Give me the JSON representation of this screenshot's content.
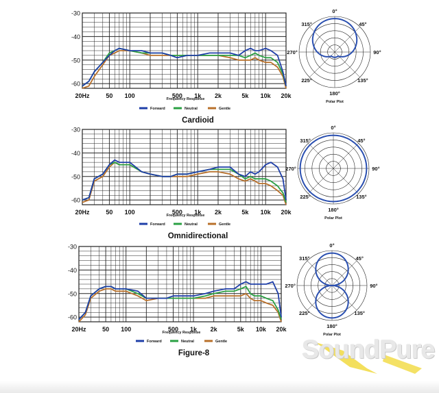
{
  "colors": {
    "forward": "#1f3fa8",
    "neutral": "#2aa043",
    "gentle": "#b8702a",
    "polar": "#2a4fb0",
    "grid": "#222222"
  },
  "legend_labels": [
    "Forward",
    "Neutral",
    "Gentle"
  ],
  "x_tick_labels": [
    "20Hz",
    "50",
    "100",
    "500",
    "1k",
    "2k",
    "5k",
    "10k",
    "20k"
  ],
  "y_tick_labels": [
    "-30",
    "-40",
    "-50",
    "-60"
  ],
  "x_axis_label": "Frequency Response",
  "polar_angle_labels": [
    "0°",
    "45°",
    "90°",
    "135°",
    "180°",
    "225°",
    "270°",
    "315°"
  ],
  "polar_label": "Polar Plot",
  "logo_text": "SoundPure",
  "chart_data": [
    {
      "type": "line",
      "title": "Cardioid",
      "xlabel": "Frequency Response",
      "x_scale": "log",
      "xlim": [
        20,
        20000
      ],
      "ylim": [
        -62,
        -30
      ],
      "grid": true,
      "legend": "bottom",
      "series": [
        {
          "name": "Forward",
          "x": [
            20,
            25,
            30,
            40,
            50,
            60,
            70,
            100,
            150,
            200,
            300,
            400,
            500,
            700,
            1000,
            1500,
            2000,
            3000,
            4000,
            5000,
            6000,
            7000,
            8000,
            10000,
            12000,
            15000,
            18000,
            20000
          ],
          "y": [
            -61,
            -59,
            -55,
            -51,
            -48,
            -46,
            -45,
            -46,
            -46,
            -47,
            -47,
            -48,
            -49,
            -48,
            -48,
            -47,
            -47,
            -47,
            -48,
            -46,
            -45,
            -46,
            -46,
            -45,
            -46,
            -48,
            -55,
            -61
          ]
        },
        {
          "name": "Neutral",
          "x": [
            20,
            25,
            30,
            40,
            50,
            60,
            70,
            100,
            150,
            200,
            300,
            400,
            500,
            700,
            1000,
            1500,
            2000,
            3000,
            4000,
            5000,
            6000,
            7000,
            8000,
            10000,
            12000,
            15000,
            18000,
            20000
          ],
          "y": [
            -61,
            -59,
            -55,
            -51,
            -47,
            -46,
            -45,
            -46,
            -47,
            -47,
            -47,
            -48,
            -48,
            -48,
            -48,
            -48,
            -48,
            -48,
            -48,
            -49,
            -48,
            -47,
            -48,
            -49,
            -49,
            -51,
            -56,
            -61
          ]
        },
        {
          "name": "Gentle",
          "x": [
            20,
            25,
            30,
            40,
            50,
            60,
            70,
            100,
            150,
            200,
            300,
            400,
            500,
            700,
            1000,
            1500,
            2000,
            3000,
            4000,
            5000,
            6000,
            7000,
            8000,
            10000,
            12000,
            15000,
            18000,
            20000
          ],
          "y": [
            -62,
            -61,
            -57,
            -52,
            -48,
            -47,
            -46,
            -46,
            -47,
            -48,
            -48,
            -48,
            -48,
            -48,
            -48,
            -48,
            -48,
            -49,
            -50,
            -50,
            -50,
            -49,
            -50,
            -51,
            -51,
            -53,
            -57,
            -62
          ]
        }
      ],
      "polar": {
        "pattern": "cardioid"
      }
    },
    {
      "type": "line",
      "title": "Omnidirectional",
      "xlabel": "Frequency Response",
      "x_scale": "log",
      "xlim": [
        20,
        20000
      ],
      "ylim": [
        -62,
        -30
      ],
      "grid": true,
      "legend": "bottom",
      "series": [
        {
          "name": "Forward",
          "x": [
            20,
            25,
            30,
            40,
            50,
            60,
            70,
            100,
            150,
            200,
            300,
            400,
            500,
            700,
            1000,
            1500,
            2000,
            3000,
            4000,
            5000,
            6000,
            7000,
            8000,
            10000,
            12000,
            15000,
            18000,
            20000
          ],
          "y": [
            -60,
            -59,
            -51,
            -49,
            -45,
            -43,
            -44,
            -44,
            -48,
            -49,
            -50,
            -50,
            -49,
            -49,
            -48,
            -47,
            -46,
            -46,
            -49,
            -50,
            -48,
            -49,
            -48,
            -45,
            -44,
            -46,
            -51,
            -60
          ]
        },
        {
          "name": "Neutral",
          "x": [
            20,
            25,
            30,
            40,
            50,
            60,
            70,
            100,
            150,
            200,
            300,
            400,
            500,
            700,
            1000,
            1500,
            2000,
            3000,
            4000,
            5000,
            6000,
            7000,
            8000,
            10000,
            12000,
            15000,
            18000,
            20000
          ],
          "y": [
            -60,
            -59,
            -51,
            -49,
            -45,
            -44,
            -45,
            -45,
            -48,
            -49,
            -50,
            -50,
            -49,
            -49,
            -48,
            -47,
            -47,
            -47,
            -49,
            -51,
            -50,
            -51,
            -51,
            -51,
            -52,
            -54,
            -57,
            -61
          ]
        },
        {
          "name": "Gentle",
          "x": [
            20,
            25,
            30,
            40,
            50,
            60,
            70,
            100,
            150,
            200,
            300,
            400,
            500,
            700,
            1000,
            1500,
            2000,
            3000,
            4000,
            5000,
            6000,
            7000,
            8000,
            10000,
            12000,
            15000,
            18000,
            20000
          ],
          "y": [
            -61,
            -60,
            -52,
            -50,
            -46,
            -44,
            -45,
            -45,
            -48,
            -49,
            -50,
            -50,
            -50,
            -50,
            -49,
            -48,
            -48,
            -49,
            -51,
            -52,
            -51,
            -52,
            -53,
            -53,
            -54,
            -56,
            -58,
            -62
          ]
        }
      ],
      "polar": {
        "pattern": "omni"
      }
    },
    {
      "type": "line",
      "title": "Figure-8",
      "xlabel": "Frequency Response",
      "x_scale": "log",
      "xlim": [
        20,
        20000
      ],
      "ylim": [
        -62,
        -30
      ],
      "grid": true,
      "legend": "bottom",
      "series": [
        {
          "name": "Forward",
          "x": [
            20,
            25,
            30,
            40,
            50,
            60,
            70,
            100,
            150,
            200,
            300,
            400,
            500,
            700,
            1000,
            1500,
            2000,
            3000,
            4000,
            5000,
            6000,
            7000,
            8000,
            10000,
            12000,
            15000,
            18000,
            20000
          ],
          "y": [
            -61,
            -58,
            -51,
            -48,
            -47,
            -47,
            -48,
            -48,
            -49,
            -52,
            -52,
            -52,
            -51,
            -51,
            -51,
            -50,
            -49,
            -48,
            -48,
            -46,
            -45,
            -46,
            -46,
            -46,
            -46,
            -45,
            -50,
            -60
          ]
        },
        {
          "name": "Neutral",
          "x": [
            20,
            25,
            30,
            40,
            50,
            60,
            70,
            100,
            150,
            200,
            300,
            400,
            500,
            700,
            1000,
            1500,
            2000,
            3000,
            4000,
            5000,
            6000,
            7000,
            8000,
            10000,
            12000,
            15000,
            18000,
            20000
          ],
          "y": [
            -61,
            -58,
            -51,
            -48,
            -47,
            -47,
            -48,
            -48,
            -50,
            -52,
            -52,
            -52,
            -52,
            -52,
            -52,
            -51,
            -50,
            -49,
            -49,
            -48,
            -47,
            -50,
            -51,
            -51,
            -52,
            -53,
            -57,
            -61
          ]
        },
        {
          "name": "Gentle",
          "x": [
            20,
            25,
            30,
            40,
            50,
            60,
            70,
            100,
            150,
            200,
            300,
            400,
            500,
            700,
            1000,
            1500,
            2000,
            3000,
            4000,
            5000,
            6000,
            7000,
            8000,
            10000,
            12000,
            15000,
            18000,
            20000
          ],
          "y": [
            -62,
            -59,
            -52,
            -49,
            -48,
            -48,
            -49,
            -49,
            -51,
            -53,
            -52,
            -52,
            -52,
            -52,
            -52,
            -52,
            -51,
            -51,
            -51,
            -51,
            -50,
            -52,
            -53,
            -53,
            -54,
            -55,
            -58,
            -62
          ]
        }
      ],
      "polar": {
        "pattern": "figure8"
      }
    }
  ]
}
